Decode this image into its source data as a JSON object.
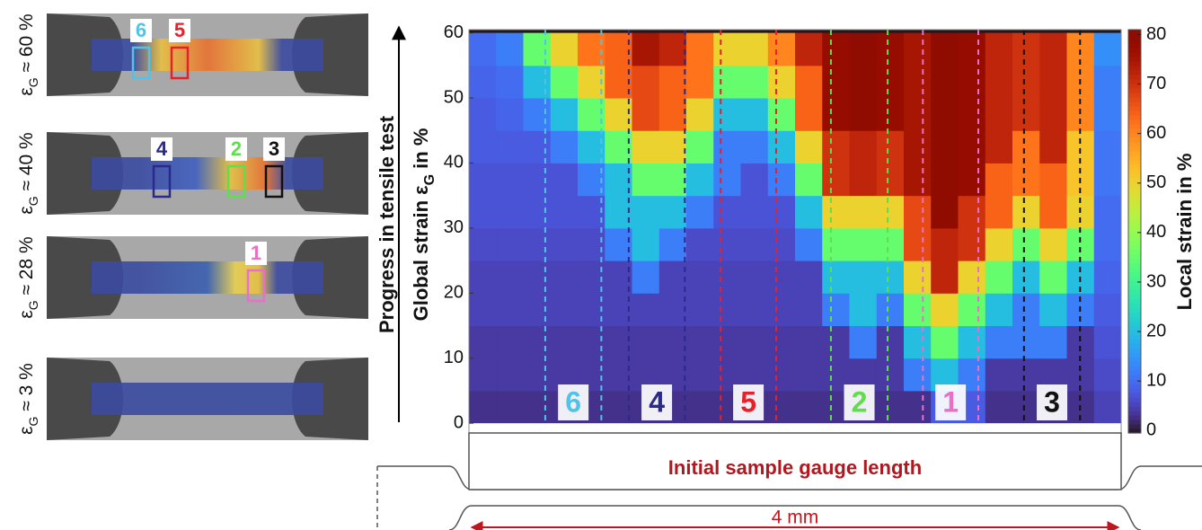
{
  "panels": [
    {
      "strain": {
        "symbol": "ε",
        "sub": "G",
        "rest": " ≈ 60 %"
      },
      "markers": [
        {
          "label": "6",
          "color": "#4fc3e8"
        },
        {
          "label": "5",
          "color": "#e8202a"
        }
      ]
    },
    {
      "strain": {
        "symbol": "ε",
        "sub": "G",
        "rest": " ≈ 40 %"
      },
      "markers": [
        {
          "label": "4",
          "color": "#2a2a8c"
        },
        {
          "label": "2",
          "color": "#5ee04a"
        },
        {
          "label": "3",
          "color": "#111111"
        }
      ]
    },
    {
      "strain": {
        "symbol": "ε",
        "sub": "G",
        "rest": " ≈ 28 %"
      },
      "markers": [
        {
          "label": "1",
          "color": "#e870c8"
        }
      ]
    },
    {
      "strain": {
        "symbol": "ε",
        "sub": "G",
        "rest": " ≈ 3 %"
      },
      "markers": []
    }
  ],
  "chart_data": {
    "type": "heatmap",
    "progress_label": "Progress in tensile test",
    "y_label": {
      "main": "Global strain ε",
      "sub": "G",
      "rest": " in %"
    },
    "colorbar_label": "Local strain in %",
    "ylim": [
      -1.5,
      60.5
    ],
    "yticks": [
      0,
      10,
      20,
      30,
      40,
      50,
      60
    ],
    "clim": [
      -0.5,
      81
    ],
    "cticks": [
      0,
      10,
      20,
      30,
      40,
      50,
      60,
      70,
      80
    ],
    "colormap": "turbo",
    "y": [
      2.5,
      7.5,
      12.5,
      17.5,
      22.5,
      27.5,
      32.5,
      37.5,
      42.5,
      47.5,
      52.5,
      57.5
    ],
    "columns": [
      [
        3,
        4,
        4,
        5,
        5,
        6,
        7,
        7,
        8,
        8,
        9,
        10
      ],
      [
        3,
        4,
        4,
        5,
        5,
        6,
        7,
        7,
        8,
        9,
        10,
        12
      ],
      [
        3,
        4,
        4,
        5,
        5,
        6,
        7,
        7,
        8,
        12,
        20,
        35
      ],
      [
        3,
        4,
        4,
        5,
        5,
        6,
        7,
        7,
        12,
        20,
        35,
        50
      ],
      [
        3,
        4,
        4,
        5,
        5,
        6,
        7,
        12,
        20,
        35,
        50,
        62
      ],
      [
        3,
        4,
        4,
        5,
        5,
        12,
        20,
        20,
        35,
        50,
        64,
        64
      ],
      [
        3,
        4,
        4,
        5,
        12,
        20,
        20,
        35,
        50,
        67,
        67,
        75
      ],
      [
        3,
        4,
        4,
        5,
        5,
        12,
        20,
        35,
        50,
        64,
        64,
        72
      ],
      [
        3,
        4,
        4,
        5,
        5,
        6,
        12,
        20,
        35,
        50,
        62,
        62
      ],
      [
        3,
        4,
        4,
        5,
        5,
        6,
        7,
        12,
        12,
        20,
        35,
        50
      ],
      [
        3,
        4,
        4,
        5,
        5,
        6,
        7,
        7,
        12,
        20,
        35,
        50
      ],
      [
        3,
        4,
        4,
        5,
        5,
        6,
        7,
        12,
        20,
        35,
        50,
        60
      ],
      [
        3,
        4,
        4,
        5,
        5,
        12,
        20,
        35,
        50,
        64,
        64,
        72
      ],
      [
        3,
        4,
        4,
        12,
        20,
        35,
        50,
        70,
        70,
        78,
        78,
        78
      ],
      [
        3,
        4,
        12,
        20,
        20,
        35,
        50,
        72,
        72,
        80,
        80,
        80
      ],
      [
        3,
        4,
        4,
        12,
        20,
        35,
        50,
        70,
        70,
        78,
        78,
        78
      ],
      [
        3,
        12,
        20,
        35,
        50,
        67,
        67,
        75,
        75,
        75,
        75,
        75
      ],
      [
        8,
        20,
        35,
        50,
        72,
        72,
        80,
        80,
        80,
        80,
        80,
        80
      ],
      [
        8,
        12,
        20,
        35,
        50,
        70,
        70,
        78,
        78,
        78,
        78,
        78
      ],
      [
        3,
        4,
        12,
        20,
        35,
        50,
        64,
        64,
        72,
        72,
        72,
        72
      ],
      [
        3,
        4,
        12,
        12,
        20,
        35,
        50,
        62,
        62,
        70,
        70,
        70
      ],
      [
        3,
        4,
        12,
        20,
        35,
        50,
        64,
        64,
        72,
        72,
        72,
        72
      ],
      [
        3,
        4,
        4,
        12,
        20,
        35,
        50,
        52,
        52,
        60,
        60,
        60
      ],
      [
        5,
        6,
        7,
        8,
        9,
        10,
        10,
        11,
        11,
        12,
        12,
        14
      ]
    ],
    "zones": [
      {
        "label": "6",
        "color": "#4fc3e8"
      },
      {
        "label": "4",
        "color": "#2a2a8c"
      },
      {
        "label": "5",
        "color": "#e8202a"
      },
      {
        "label": "2",
        "color": "#5ee04a"
      },
      {
        "label": "1",
        "color": "#e870c8"
      },
      {
        "label": "3",
        "color": "#111111"
      }
    ]
  },
  "specimen": {
    "gauge_label": "Initial sample gauge length",
    "length_label": "4 mm"
  }
}
